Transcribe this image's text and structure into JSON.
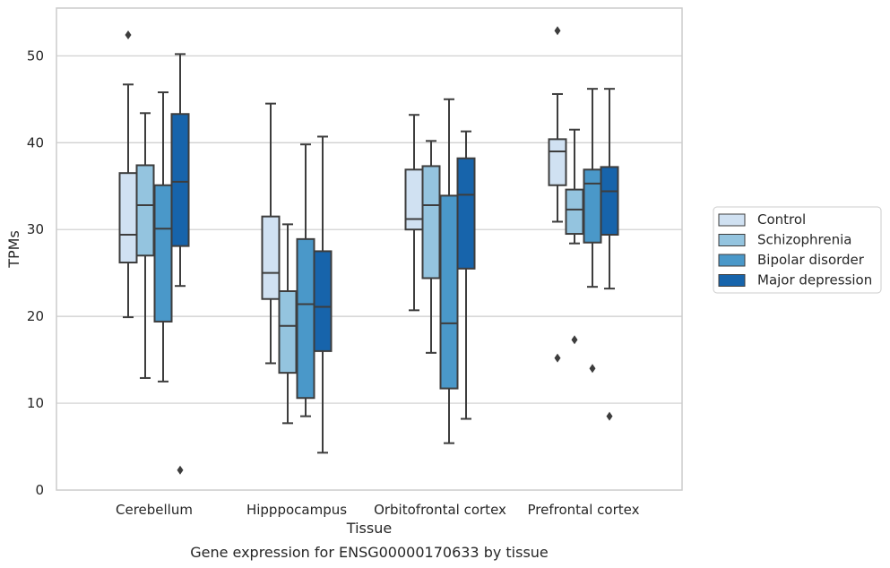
{
  "chart_data": {
    "type": "box",
    "xlabel": "Tissue",
    "ylabel": "TPMs",
    "caption": "Gene expression for ENSG00000170633 by tissue",
    "ylim": [
      0,
      55.5
    ],
    "yticks": [
      0,
      10,
      20,
      30,
      40,
      50
    ],
    "grid": "horizontal",
    "legend_position": "right",
    "categories": [
      "Cerebellum",
      "Hipppocampus",
      "Orbitofrontal cortex",
      "Prefrontal cortex"
    ],
    "series": [
      {
        "name": "Control",
        "color": "#d0e1f2",
        "boxes": [
          {
            "whislo": 19.9,
            "q1": 26.2,
            "med": 29.4,
            "q3": 36.5,
            "whishi": 46.7,
            "fliers": [
              52.4
            ]
          },
          {
            "whislo": 14.6,
            "q1": 22.0,
            "med": 25.0,
            "q3": 31.5,
            "whishi": 44.5,
            "fliers": []
          },
          {
            "whislo": 20.7,
            "q1": 30.0,
            "med": 31.2,
            "q3": 36.9,
            "whishi": 43.2,
            "fliers": []
          },
          {
            "whislo": 30.9,
            "q1": 35.1,
            "med": 39.0,
            "q3": 40.4,
            "whishi": 45.6,
            "fliers": [
              52.9,
              15.2
            ]
          }
        ]
      },
      {
        "name": "Schizophrenia",
        "color": "#94c4df",
        "boxes": [
          {
            "whislo": 12.9,
            "q1": 27.0,
            "med": 32.8,
            "q3": 37.4,
            "whishi": 43.4,
            "fliers": []
          },
          {
            "whislo": 7.7,
            "q1": 13.5,
            "med": 18.9,
            "q3": 22.9,
            "whishi": 30.6,
            "fliers": []
          },
          {
            "whislo": 15.8,
            "q1": 24.4,
            "med": 32.8,
            "q3": 37.3,
            "whishi": 40.2,
            "fliers": []
          },
          {
            "whislo": 28.4,
            "q1": 29.5,
            "med": 32.3,
            "q3": 34.6,
            "whishi": 41.5,
            "fliers": [
              17.3
            ]
          }
        ]
      },
      {
        "name": "Bipolar disorder",
        "color": "#4a98c9",
        "boxes": [
          {
            "whislo": 12.5,
            "q1": 19.4,
            "med": 30.1,
            "q3": 35.1,
            "whishi": 45.8,
            "fliers": []
          },
          {
            "whislo": 8.5,
            "q1": 10.6,
            "med": 21.4,
            "q3": 28.9,
            "whishi": 39.8,
            "fliers": []
          },
          {
            "whislo": 5.4,
            "q1": 11.7,
            "med": 19.2,
            "q3": 33.9,
            "whishi": 45.0,
            "fliers": []
          },
          {
            "whislo": 23.4,
            "q1": 28.5,
            "med": 35.3,
            "q3": 36.9,
            "whishi": 46.2,
            "fliers": [
              14.0
            ]
          }
        ]
      },
      {
        "name": "Major depression",
        "color": "#1764ab",
        "boxes": [
          {
            "whislo": 23.5,
            "q1": 28.1,
            "med": 35.5,
            "q3": 43.3,
            "whishi": 50.2,
            "fliers": [
              2.3
            ]
          },
          {
            "whislo": 4.3,
            "q1": 16.0,
            "med": 21.1,
            "q3": 27.5,
            "whishi": 40.7,
            "fliers": []
          },
          {
            "whislo": 8.2,
            "q1": 25.5,
            "med": 34.0,
            "q3": 38.2,
            "whishi": 41.3,
            "fliers": []
          },
          {
            "whislo": 23.2,
            "q1": 29.4,
            "med": 34.4,
            "q3": 37.2,
            "whishi": 46.2,
            "fliers": [
              8.5
            ]
          }
        ]
      }
    ]
  }
}
